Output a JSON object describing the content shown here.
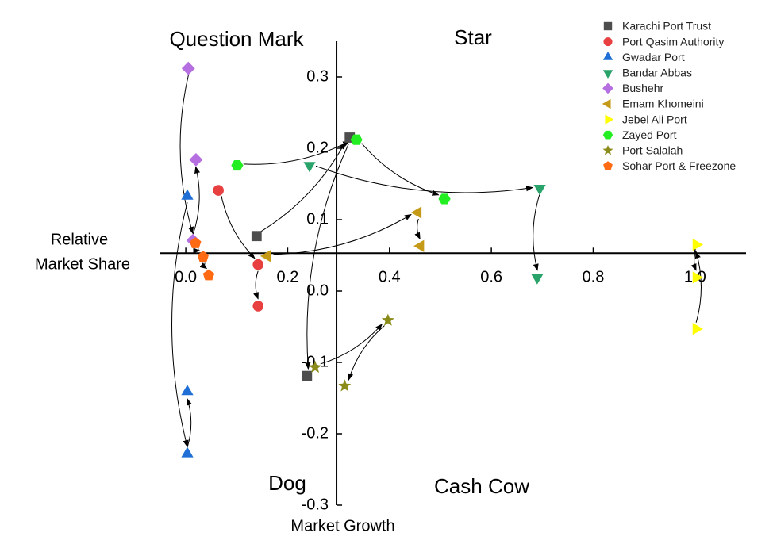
{
  "chart_data": {
    "type": "scatter",
    "quadrant_labels": {
      "top_left": "Question Mark",
      "top_right": "Star",
      "bottom_left": "Dog",
      "bottom_right": "Cash Cow"
    },
    "x_label": "Market Growth",
    "y_label": [
      "Relative",
      "Market Share"
    ],
    "xlim": [
      -0.05,
      1.1
    ],
    "ylim": [
      -0.3,
      0.35
    ],
    "axis_cross": {
      "x": 0.296,
      "y": 0.053
    },
    "xticks": [
      {
        "value": 0,
        "label": "0.0"
      },
      0.2,
      0.4,
      0.6,
      0.8,
      {
        "value": 1,
        "label": "1.0"
      }
    ],
    "yticks": [
      0.3,
      0.2,
      0.1,
      {
        "value": 0,
        "label": "0.0"
      },
      -0.1,
      -0.2,
      -0.3
    ],
    "arrows": true,
    "series": [
      {
        "name": "Karachi Port Trust",
        "color": "#4d4d4d",
        "marker": "square",
        "x": [
          0.139,
          0.322,
          0.238
        ],
        "values": [
          0.077,
          0.215,
          -0.119
        ]
      },
      {
        "name": "Port Qasim Authority",
        "color": "#e84040",
        "marker": "circle",
        "x": [
          0.064,
          0.142,
          0.142
        ],
        "values": [
          0.141,
          0.037,
          -0.021
        ]
      },
      {
        "name": "Gwadar Port",
        "color": "#1f6fd6",
        "marker": "triangle-up",
        "x": [
          0.003,
          0.003,
          0.003
        ],
        "values": [
          0.133,
          -0.228,
          -0.141
        ]
      },
      {
        "name": "Bandar Abbas",
        "color": "#2aa36b",
        "marker": "triangle-down",
        "x": [
          0.243,
          0.695,
          0.69
        ],
        "values": [
          0.176,
          0.144,
          0.019
        ]
      },
      {
        "name": "Bushehr",
        "color": "#b56fe0",
        "marker": "diamond",
        "x": [
          0.005,
          0.014,
          0.02
        ],
        "values": [
          0.312,
          0.071,
          0.184
        ]
      },
      {
        "name": "Emam Khomeini",
        "color": "#c49a16",
        "marker": "triangle-left",
        "x": [
          0.16,
          0.456,
          0.461
        ],
        "values": [
          0.049,
          0.11,
          0.063
        ]
      },
      {
        "name": "Jebel Ali Port",
        "color": "#ffff00",
        "marker": "triangle-right",
        "x": [
          1.002,
          1.002,
          1.002
        ],
        "values": [
          -0.053,
          0.065,
          0.019
        ]
      },
      {
        "name": "Zayed Port",
        "color": "#22ee22",
        "marker": "hexagon",
        "x": [
          0.101,
          0.335,
          0.508
        ],
        "values": [
          0.176,
          0.212,
          0.129
        ]
      },
      {
        "name": "Port Salalah",
        "color": "#8b8b1a",
        "marker": "star",
        "x": [
          0.254,
          0.397,
          0.312
        ],
        "values": [
          -0.107,
          -0.041,
          -0.133
        ]
      },
      {
        "name": "Sohar Port & Freezone",
        "color": "#ff6a13",
        "marker": "pentagon",
        "x": [
          0.019,
          0.034,
          0.045
        ],
        "values": [
          0.067,
          0.048,
          0.022
        ]
      }
    ]
  }
}
